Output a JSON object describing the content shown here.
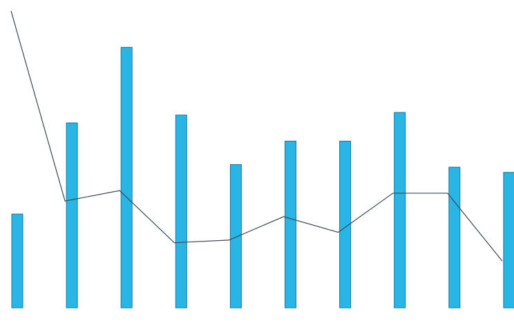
{
  "chart_data": {
    "type": "bar",
    "title": "",
    "xlabel": "",
    "ylabel": "",
    "categories": [
      "",
      "",
      "",
      "",
      "",
      "",
      "",
      "",
      "",
      ""
    ],
    "series": [
      {
        "kind": "bar",
        "values": [
          36,
          71,
          100,
          74,
          55,
          64,
          64,
          75,
          54,
          52
        ]
      },
      {
        "kind": "line",
        "values": [
          114,
          41,
          45,
          25,
          26,
          35,
          29,
          44,
          44,
          18
        ]
      }
    ],
    "ylim": [
      0,
      115
    ],
    "grid": false,
    "legend": "none",
    "colors": {
      "bar": "#29b6e4",
      "bar_stroke": "#1677a6",
      "line": "#3a4a52"
    }
  }
}
